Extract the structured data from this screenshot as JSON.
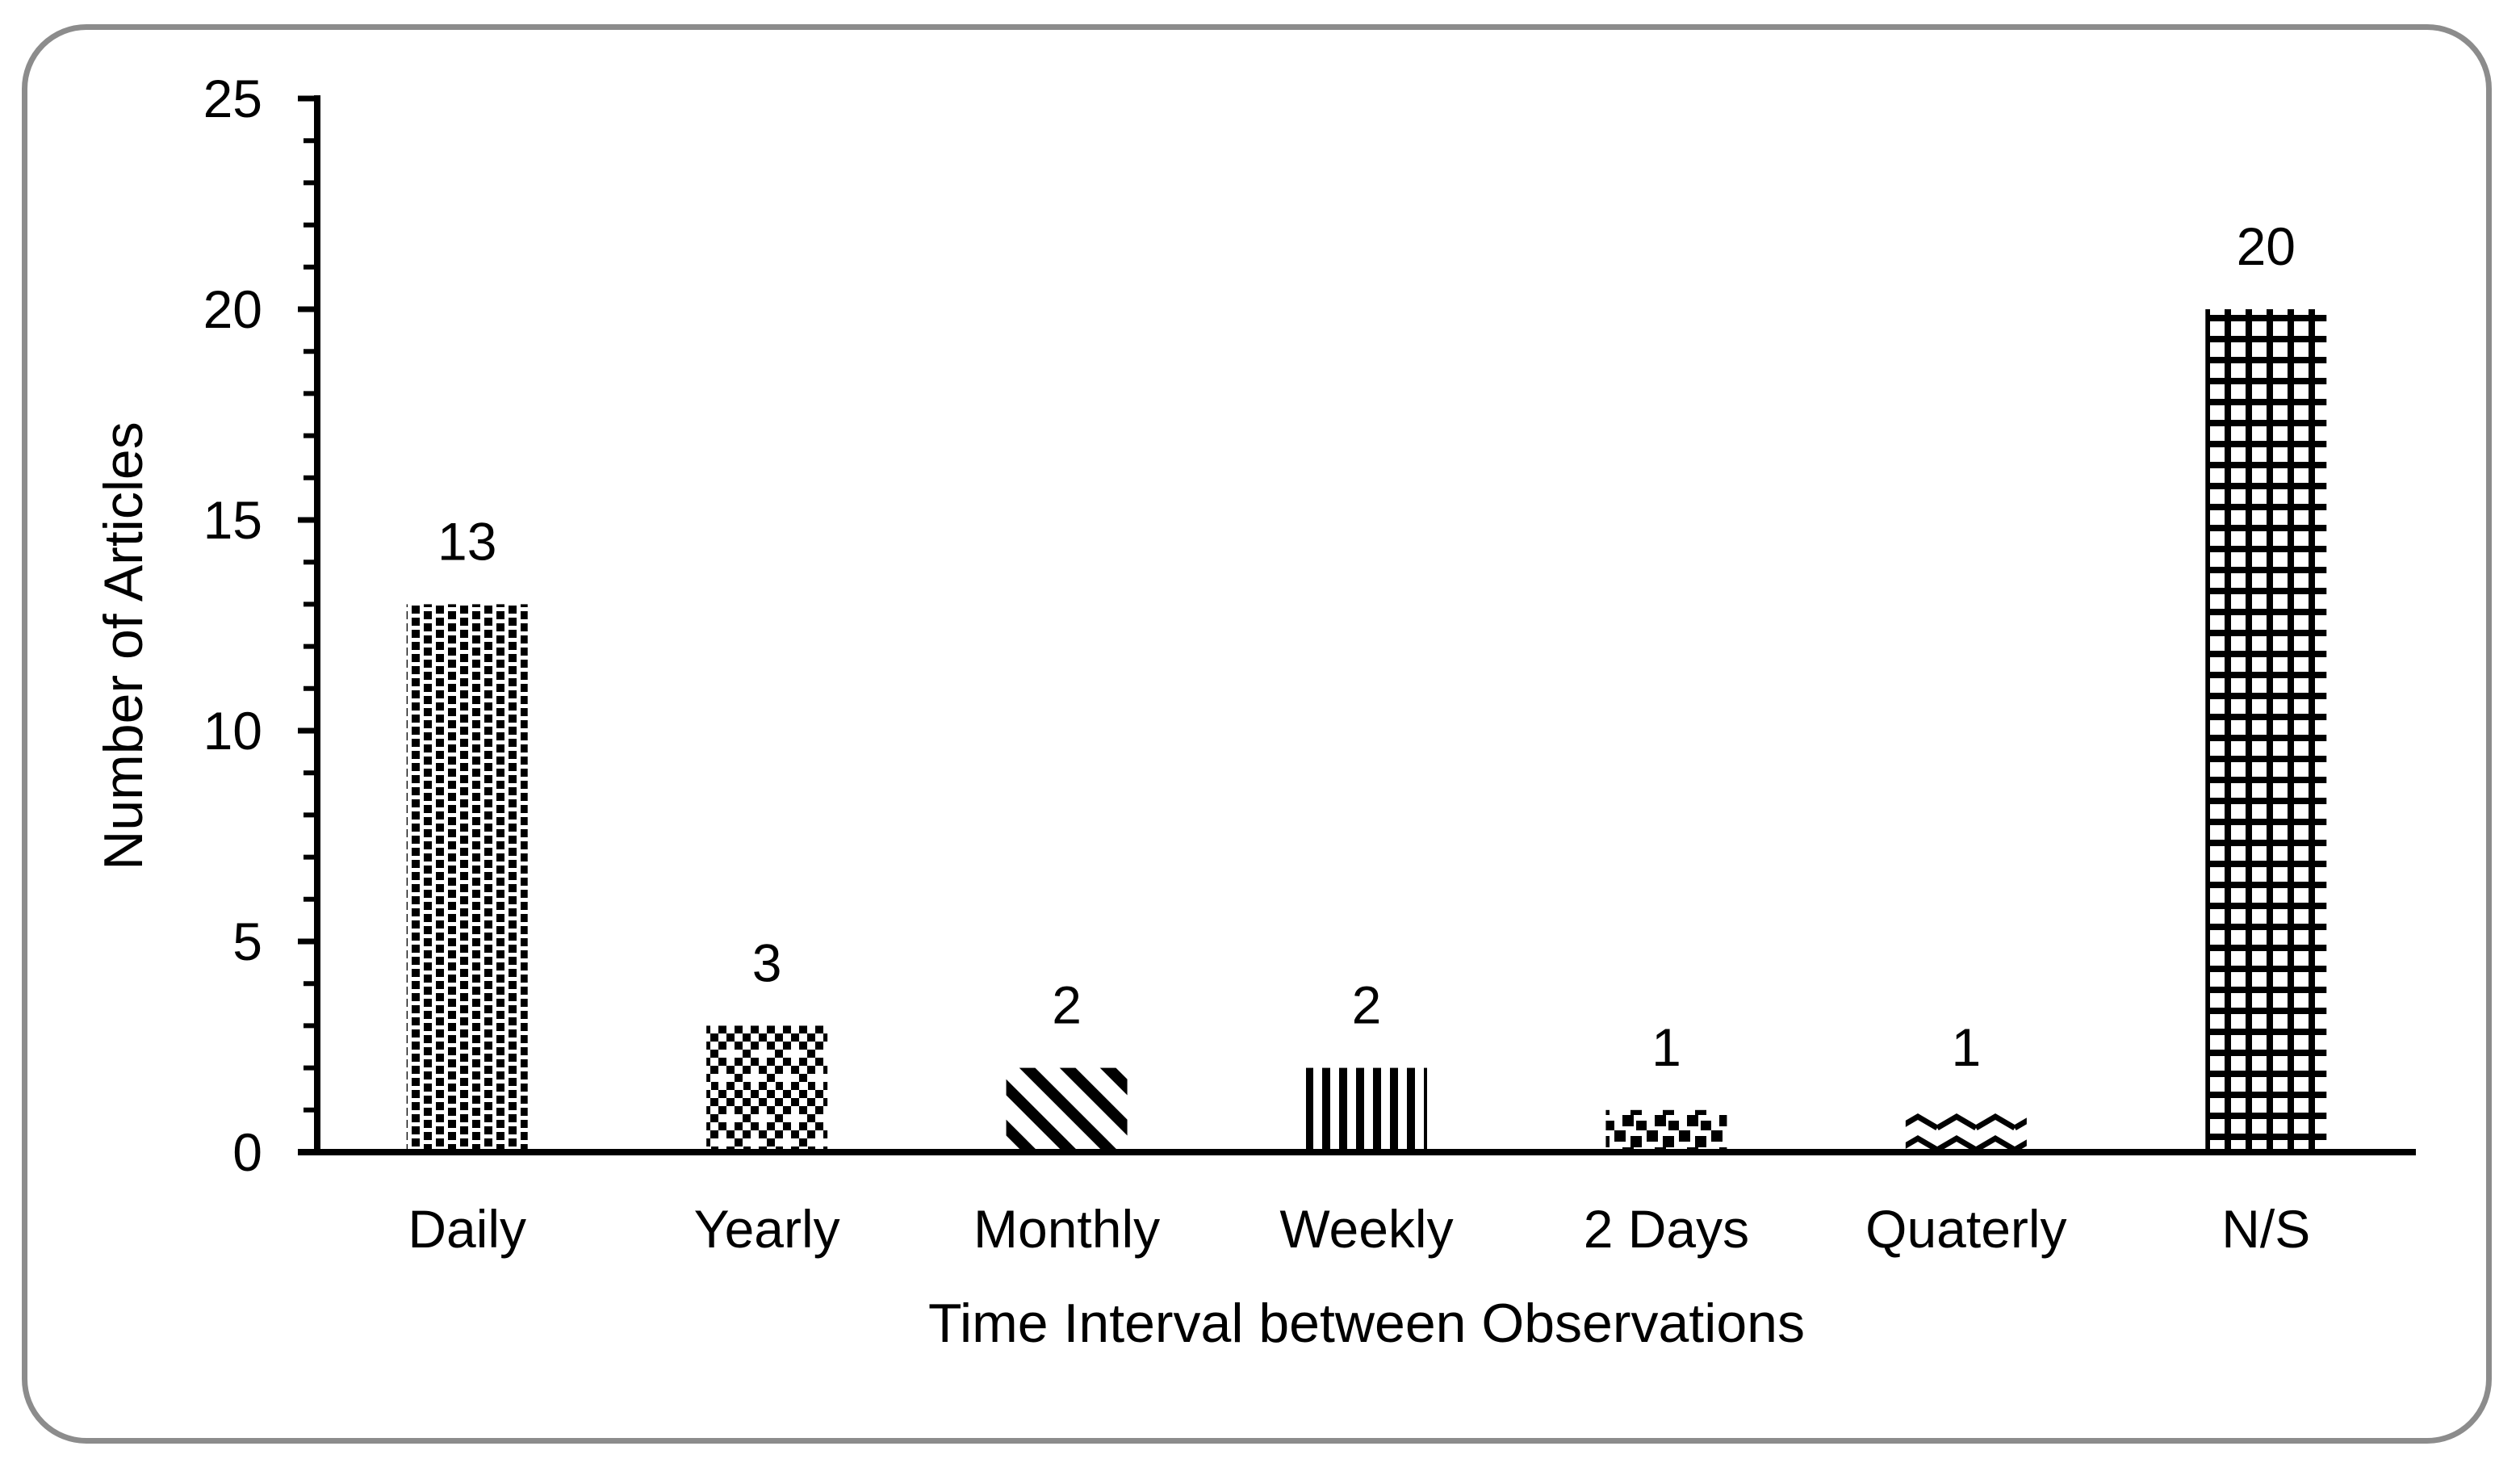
{
  "figure": {
    "background": "#ffffff",
    "frame_border_color": "#8c8c8c",
    "ink_color": "#000000"
  },
  "chart_data": {
    "type": "bar",
    "title": "",
    "categories": [
      "Daily",
      "Yearly",
      "Monthly",
      "Weekly",
      "2 Days",
      "Quaterly",
      "N/S"
    ],
    "values": [
      13,
      3,
      2,
      2,
      1,
      1,
      20
    ],
    "value_labels": [
      "13",
      "3",
      "2",
      "2",
      "1",
      "1",
      "20"
    ],
    "patterns": [
      "dotted-grid",
      "trellis-checker",
      "diagonal-stripes",
      "vertical-stripes",
      "confetti-squares",
      "wave-zigzag",
      "grid-lattice"
    ],
    "xlabel": "Time Interval between Observations",
    "ylabel": "Number of Articles",
    "ylim": [
      0,
      25
    ],
    "ytick_step": 5,
    "yminor_step": 1,
    "ytick_labels": [
      "0",
      "5",
      "10",
      "15",
      "20",
      "25"
    ],
    "grid": "off",
    "legend": "none",
    "bar_fill_color": "#000000",
    "axis_color": "#000000"
  }
}
